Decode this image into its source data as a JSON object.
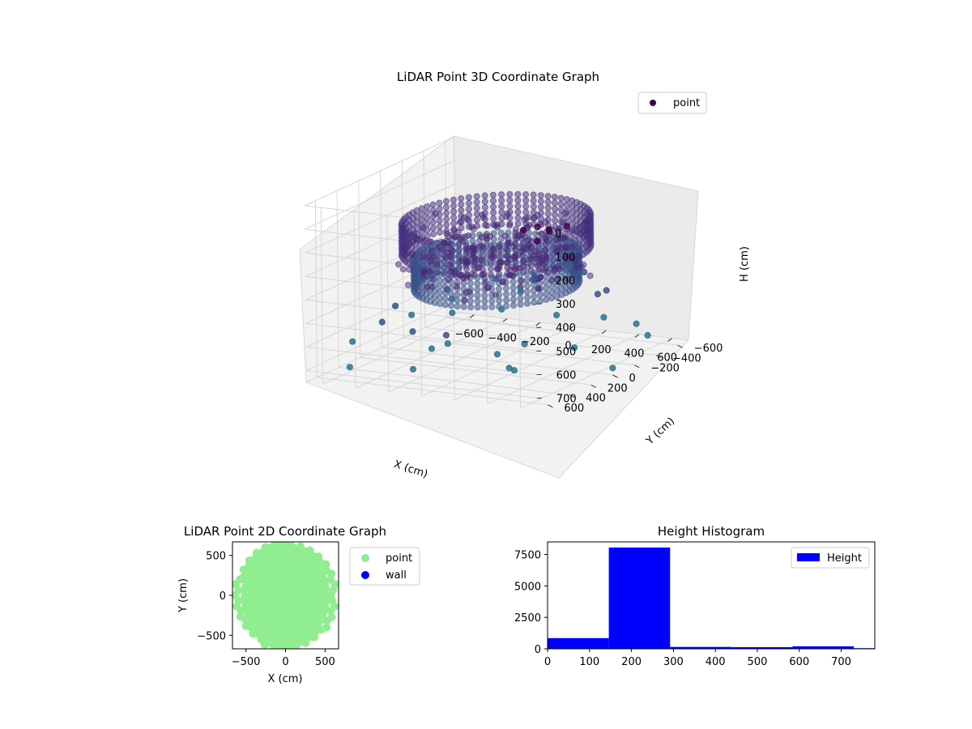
{
  "chart_data": [
    {
      "type": "scatter",
      "projection": "3d",
      "title": "LiDAR Point 3D Coordinate Graph",
      "xlabel": "X (cm)",
      "ylabel": "Y (cm)",
      "zlabel": "H (cm)",
      "xlim": [
        -700,
        700
      ],
      "ylim": [
        -700,
        700
      ],
      "zlim": [
        0,
        750
      ],
      "z_inverted": true,
      "xticks": [
        "−600",
        "−400",
        "−200",
        "0",
        "200",
        "400",
        "600"
      ],
      "yticks": [
        "−600",
        "−400",
        "−200",
        "0",
        "200",
        "400",
        "600"
      ],
      "zticks": [
        "0",
        "100",
        "200",
        "300",
        "400",
        "500",
        "600",
        "700"
      ],
      "colormap": [
        "#440154",
        "#46337f",
        "#3b528b",
        "#2c728e",
        "#21918c",
        "#a8d0d8"
      ],
      "legend": {
        "position": "top-right",
        "entries": [
          {
            "label": "point",
            "color": "#440154"
          }
        ]
      },
      "grid": true,
      "series": [
        {
          "name": "point",
          "ring_radius": 480,
          "ring_heights": [
            150,
            300
          ],
          "sparse_points": [
            [
              620,
              560,
              10
            ],
            [
              560,
              600,
              20
            ],
            [
              650,
              500,
              30
            ],
            [
              600,
              420,
              60
            ],
            [
              680,
              380,
              40
            ],
            [
              420,
              260,
              150
            ],
            [
              500,
              200,
              200
            ],
            [
              380,
              120,
              250
            ],
            [
              450,
              -50,
              300
            ],
            [
              300,
              -250,
              400
            ],
            [
              200,
              -400,
              450
            ],
            [
              -100,
              -500,
              500
            ],
            [
              0,
              -350,
              480
            ],
            [
              150,
              -150,
              420
            ],
            [
              320,
              80,
              350
            ],
            [
              400,
              -200,
              380
            ],
            [
              -300,
              -450,
              520
            ],
            [
              -500,
              -300,
              550
            ],
            [
              -550,
              100,
              540
            ],
            [
              -420,
              420,
              530
            ],
            [
              -150,
              550,
              520
            ],
            [
              100,
              620,
              500
            ],
            [
              550,
              450,
              300
            ],
            [
              600,
              -100,
              420
            ],
            [
              250,
              -550,
              560
            ],
            [
              -250,
              -600,
              600
            ],
            [
              -600,
              -500,
              640
            ],
            [
              -650,
              -200,
              650
            ],
            [
              -680,
              300,
              660
            ],
            [
              -400,
              -650,
              700
            ],
            [
              -100,
              -700,
              710
            ],
            [
              200,
              -680,
              690
            ],
            [
              450,
              -600,
              680
            ],
            [
              650,
              -400,
              670
            ],
            [
              700,
              0,
              720
            ],
            [
              500,
              650,
              600
            ],
            [
              -50,
              700,
              640
            ],
            [
              -500,
              600,
              690
            ],
            [
              -700,
              -650,
              740
            ],
            [
              300,
              300,
              700
            ],
            [
              0,
              0,
              720
            ],
            [
              -300,
              0,
              700
            ],
            [
              600,
              200,
              600
            ],
            [
              -200,
              300,
              650
            ],
            [
              100,
              -100,
              690
            ]
          ]
        }
      ]
    },
    {
      "type": "scatter",
      "title": "LiDAR Point 2D Coordinate Graph",
      "xlabel": "X (cm)",
      "ylabel": "Y (cm)",
      "xlim": [
        -670,
        670
      ],
      "ylim": [
        -670,
        670
      ],
      "xticks": [
        "−500",
        "0",
        "500"
      ],
      "yticks": [
        "−500",
        "0",
        "500"
      ],
      "legend": {
        "position": "outside-right",
        "entries": [
          {
            "label": "point",
            "color": "#90ee90"
          },
          {
            "label": "wall",
            "color": "#0000ff"
          }
        ]
      },
      "series": [
        {
          "name": "point",
          "color": "#90ee90",
          "disk": {
            "cx": 0,
            "cy": 0,
            "rx": 560,
            "ry": 640
          }
        },
        {
          "name": "wall",
          "color": "#0000ff",
          "points": []
        }
      ]
    },
    {
      "type": "bar",
      "subtype": "histogram",
      "title": "Height Histogram",
      "xlim": [
        0,
        780
      ],
      "ylim": [
        0,
        8500
      ],
      "xticks": [
        "0",
        "100",
        "200",
        "300",
        "400",
        "500",
        "600",
        "700"
      ],
      "yticks": [
        "0",
        "2500",
        "5000",
        "7500"
      ],
      "legend": {
        "position": "top-right",
        "entries": [
          {
            "label": "Height",
            "color": "#0000ff"
          }
        ]
      },
      "bin_edges": [
        0,
        146,
        292,
        438,
        584,
        730,
        876
      ],
      "values": [
        850,
        8050,
        150,
        130,
        200,
        50
      ],
      "color": "#0000ff"
    }
  ]
}
